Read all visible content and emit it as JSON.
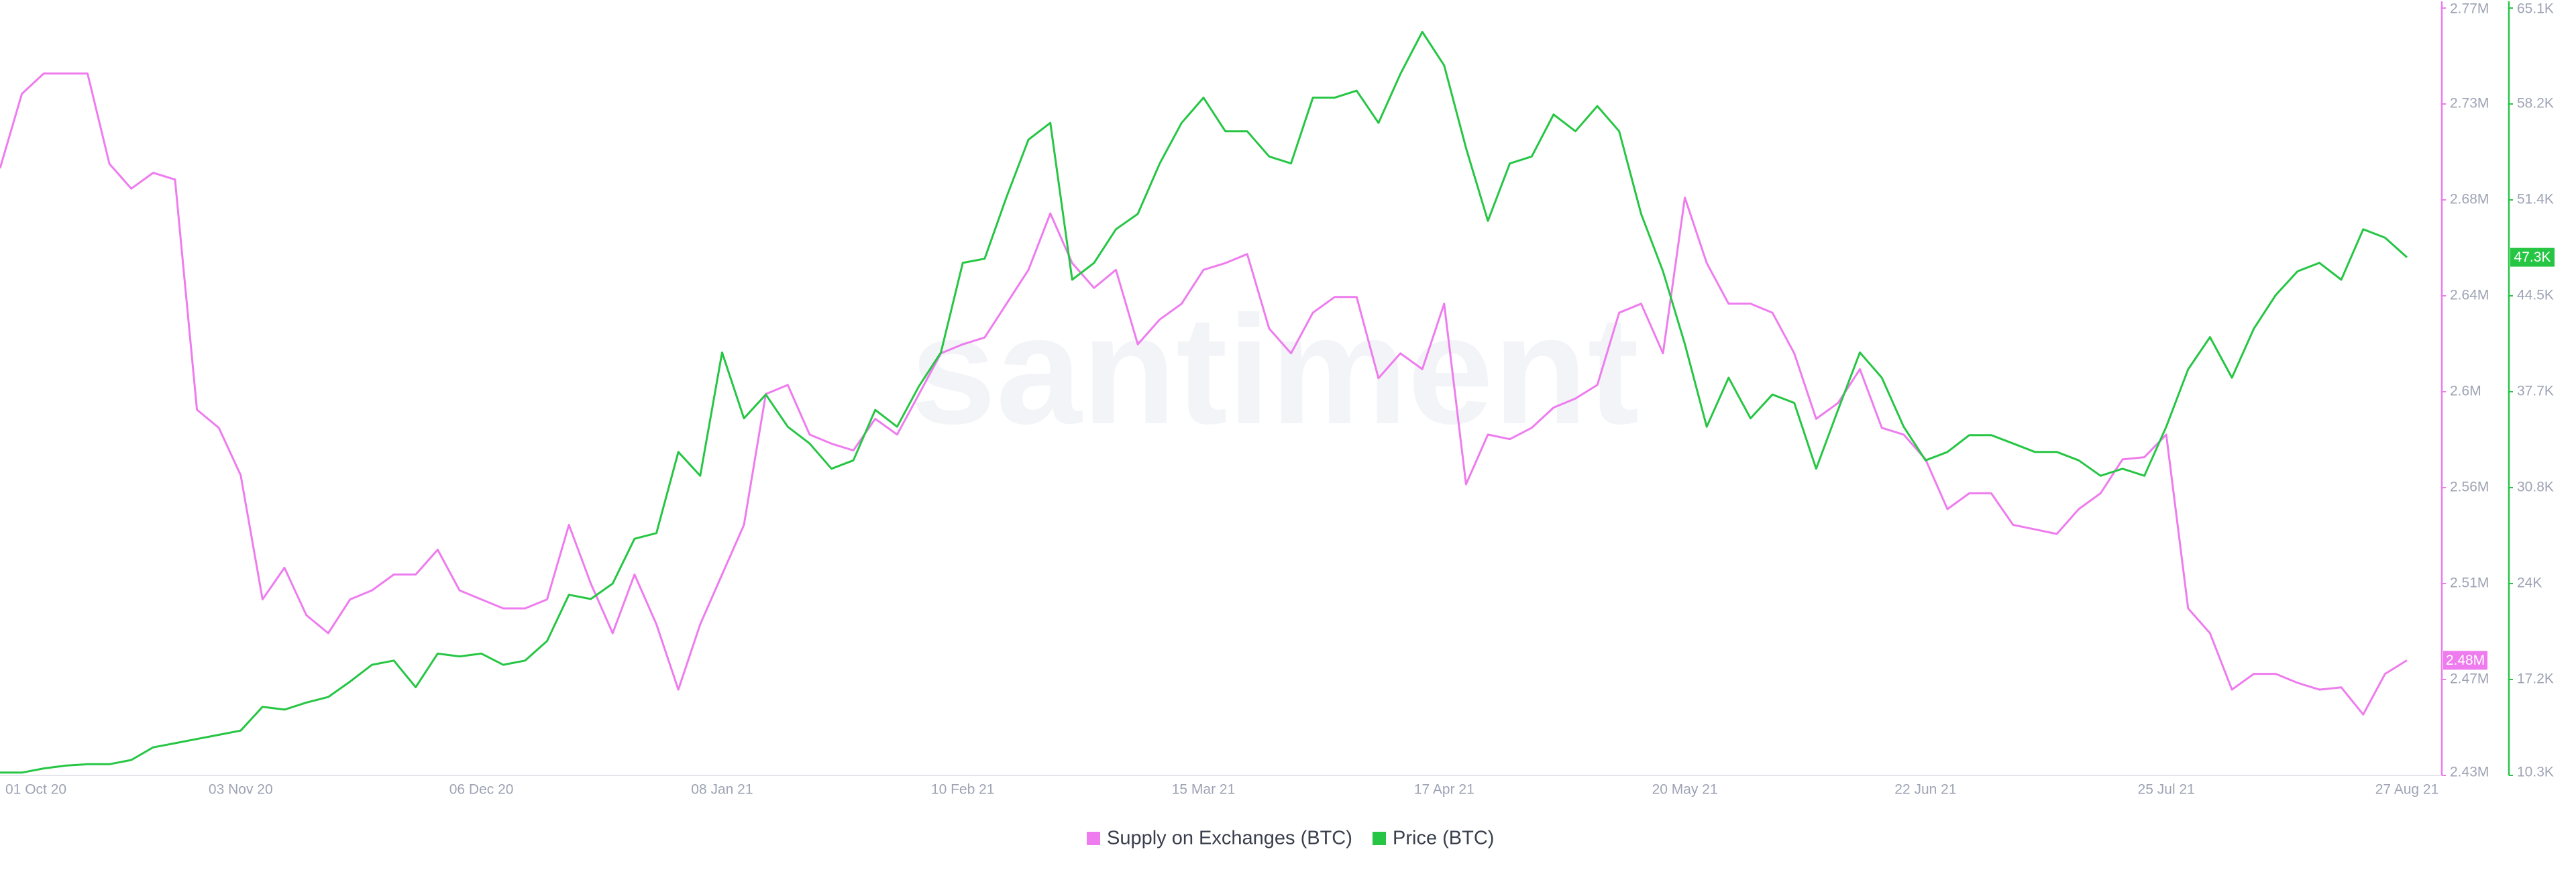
{
  "chart_data": {
    "type": "line",
    "watermark": "santiment",
    "categories": [
      "01 Oct 20",
      null,
      null,
      null,
      null,
      null,
      null,
      null,
      null,
      null,
      null,
      "03 Nov 20",
      null,
      null,
      null,
      null,
      null,
      null,
      null,
      null,
      null,
      null,
      "06 Dec 20",
      null,
      null,
      null,
      null,
      null,
      null,
      null,
      null,
      null,
      null,
      "08 Jan 21",
      null,
      null,
      null,
      null,
      null,
      null,
      null,
      null,
      null,
      null,
      "10 Feb 21",
      null,
      null,
      null,
      null,
      null,
      null,
      null,
      null,
      null,
      null,
      "15 Mar 21",
      null,
      null,
      null,
      null,
      null,
      null,
      null,
      null,
      null,
      null,
      "17 Apr 21",
      null,
      null,
      null,
      null,
      null,
      null,
      null,
      null,
      null,
      null,
      "20 May 21",
      null,
      null,
      null,
      null,
      null,
      null,
      null,
      null,
      null,
      null,
      "22 Jun 21",
      null,
      null,
      null,
      null,
      null,
      null,
      null,
      null,
      null,
      null,
      "25 Jul 21",
      null,
      null,
      null,
      null,
      null,
      null,
      null,
      null,
      null,
      null,
      "27 Aug 21"
    ],
    "ylim": [
      2430000,
      2770000
    ],
    "yticks": [
      {
        "value": 2430000,
        "label": "2.43M"
      },
      {
        "value": 2472500,
        "label": "2.47M"
      },
      {
        "value": 2515000,
        "label": "2.51M"
      },
      {
        "value": 2557500,
        "label": "2.56M"
      },
      {
        "value": 2600000,
        "label": "2.6M"
      },
      {
        "value": 2642500,
        "label": "2.64M"
      },
      {
        "value": 2685000,
        "label": "2.68M"
      },
      {
        "value": 2727500,
        "label": "2.73M"
      },
      {
        "value": 2770000,
        "label": "2.77M"
      }
    ],
    "y2lim": [
      10300,
      65100
    ],
    "y2ticks": [
      {
        "value": 10300,
        "label": "10.3K"
      },
      {
        "value": 17150,
        "label": "17.2K"
      },
      {
        "value": 24000,
        "label": "24K"
      },
      {
        "value": 30850,
        "label": "30.8K"
      },
      {
        "value": 37700,
        "label": "37.7K"
      },
      {
        "value": 44550,
        "label": "44.5K"
      },
      {
        "value": 51400,
        "label": "51.4K"
      },
      {
        "value": 58250,
        "label": "58.2K"
      },
      {
        "value": 65100,
        "label": "65.1K"
      }
    ],
    "grid": false,
    "legend": "bottom",
    "series": [
      {
        "name": "Supply on Exchanges (BTC)",
        "color": "#ee7cee",
        "axis": "y",
        "values": [
          2699000,
          2732000,
          2741000,
          2741000,
          2741000,
          2701000,
          2690000,
          2697000,
          2694000,
          2592000,
          2584000,
          2563000,
          2508000,
          2522000,
          2501000,
          2493000,
          2508000,
          2512000,
          2519000,
          2519000,
          2530000,
          2512000,
          2508000,
          2504000,
          2504000,
          2508000,
          2541000,
          2515000,
          2493000,
          2519000,
          2497000,
          2468000,
          2497000,
          2519000,
          2541000,
          2599000,
          2603000,
          2581000,
          2577000,
          2574000,
          2588000,
          2581000,
          2599000,
          2617000,
          2621000,
          2624000,
          2639000,
          2654000,
          2679000,
          2657000,
          2646000,
          2654000,
          2621000,
          2632000,
          2639000,
          2654000,
          2657000,
          2661000,
          2628000,
          2617000,
          2635000,
          2642000,
          2642000,
          2606000,
          2617000,
          2610000,
          2639000,
          2559000,
          2581000,
          2579000,
          2584000,
          2593000,
          2597000,
          2603000,
          2635000,
          2639000,
          2617000,
          2686000,
          2657000,
          2639000,
          2639000,
          2635000,
          2617000,
          2588000,
          2595000,
          2610000,
          2584000,
          2581000,
          2570000,
          2548000,
          2555000,
          2555000,
          2541000,
          2539000,
          2537000,
          2548000,
          2555000,
          2570000,
          2571000,
          2581000,
          2504000,
          2493000,
          2468000,
          2475000,
          2475000,
          2471000,
          2468000,
          2469000,
          2457000,
          2475000,
          2481000
        ],
        "value_labels": [
          null,
          null,
          null,
          null,
          null,
          null,
          null,
          null,
          null,
          null,
          null,
          null,
          null,
          null,
          null,
          null,
          null,
          null,
          null,
          null,
          null,
          null,
          null,
          null,
          null,
          null,
          null,
          null,
          null,
          null,
          null,
          null,
          null,
          null,
          null,
          null,
          null,
          null,
          null,
          null,
          null,
          null,
          null,
          null,
          null,
          null,
          null,
          null,
          null,
          null,
          null,
          null,
          null,
          null,
          null,
          null,
          null,
          null,
          null,
          null,
          null,
          null,
          null,
          null,
          null,
          null,
          null,
          null,
          null,
          null,
          null,
          null,
          null,
          null,
          null,
          null,
          null,
          null,
          null,
          null,
          null,
          null,
          null,
          null,
          null,
          null,
          null,
          null,
          null,
          null,
          null,
          null,
          null,
          null,
          null,
          null,
          null,
          null,
          null,
          null,
          null,
          null,
          null,
          null,
          null,
          null,
          null,
          null,
          null,
          null,
          "2.48M"
        ]
      },
      {
        "name": "Price (BTC)",
        "color": "#26c644",
        "axis": "y2",
        "values": [
          10500,
          10500,
          10800,
          11000,
          11100,
          11100,
          11400,
          12300,
          12600,
          12900,
          13200,
          13500,
          15200,
          15000,
          15500,
          15900,
          17000,
          18200,
          18500,
          16600,
          19000,
          18800,
          19000,
          18200,
          18500,
          19900,
          23200,
          22900,
          24000,
          27200,
          27600,
          33400,
          31700,
          40500,
          35800,
          37500,
          35200,
          34000,
          32200,
          32800,
          36400,
          35200,
          38100,
          40500,
          46900,
          47200,
          51600,
          55700,
          56900,
          45700,
          46900,
          49300,
          50400,
          54000,
          56900,
          58700,
          56300,
          56300,
          54500,
          54000,
          58700,
          58700,
          59200,
          56900,
          60400,
          63400,
          61000,
          55100,
          49900,
          54000,
          54500,
          57500,
          56300,
          58100,
          56300,
          50400,
          46300,
          41100,
          35200,
          38700,
          35800,
          37500,
          36900,
          32200,
          36400,
          40500,
          38700,
          35200,
          32800,
          33400,
          34600,
          34600,
          34000,
          33400,
          33400,
          32800,
          31700,
          32200,
          31700,
          35200,
          39300,
          41600,
          38700,
          42200,
          44600,
          46300,
          46900,
          45700,
          49300,
          48700,
          47300
        ],
        "value_labels": [
          null,
          null,
          null,
          null,
          null,
          null,
          null,
          null,
          null,
          null,
          null,
          null,
          null,
          null,
          null,
          null,
          null,
          null,
          null,
          null,
          null,
          null,
          null,
          null,
          null,
          null,
          null,
          null,
          null,
          null,
          null,
          null,
          null,
          null,
          null,
          null,
          null,
          null,
          null,
          null,
          null,
          null,
          null,
          null,
          null,
          null,
          null,
          null,
          null,
          null,
          null,
          null,
          null,
          null,
          null,
          null,
          null,
          null,
          null,
          null,
          null,
          null,
          null,
          null,
          null,
          null,
          null,
          null,
          null,
          null,
          null,
          null,
          null,
          null,
          null,
          null,
          null,
          null,
          null,
          null,
          null,
          null,
          null,
          null,
          null,
          null,
          null,
          null,
          null,
          null,
          null,
          null,
          null,
          null,
          null,
          null,
          null,
          null,
          null,
          null,
          null,
          null,
          null,
          null,
          null,
          null,
          null,
          null,
          null,
          null,
          "47.3K"
        ]
      }
    ]
  }
}
